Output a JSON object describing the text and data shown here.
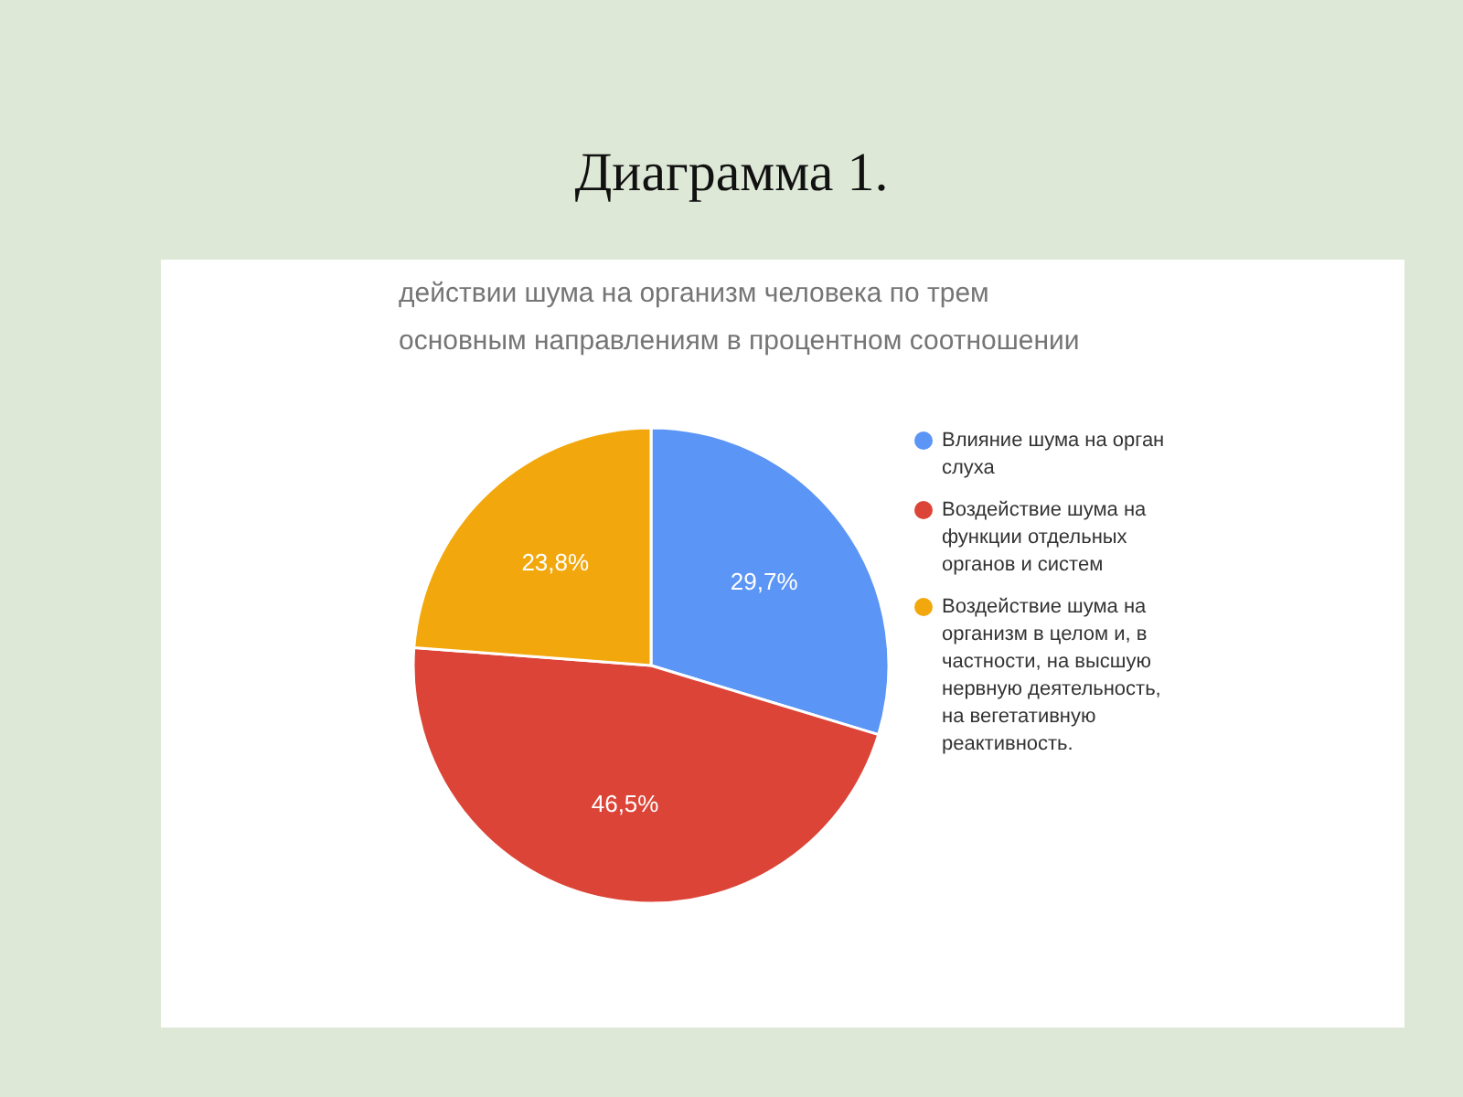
{
  "chart_data": {
    "type": "pie",
    "title": "Диаграмма 1.",
    "subtitle": "действии шума на организм человека по трем основным направлениям в процентном соотношении",
    "categories": [
      "Влияние шума на орган слуха",
      "Воздействие шума на функции отдельных органов и систем",
      "Воздействие шума на организм в целом и, в частности, на высшую нервную деятельность, на вегетативную реактивность."
    ],
    "values": [
      29.7,
      46.5,
      23.8
    ],
    "colors": [
      "#5b95f5",
      "#dc4437",
      "#f2a80c"
    ],
    "value_labels": [
      "29,7%",
      "46,5%",
      "23,8%"
    ],
    "legend": "right"
  }
}
